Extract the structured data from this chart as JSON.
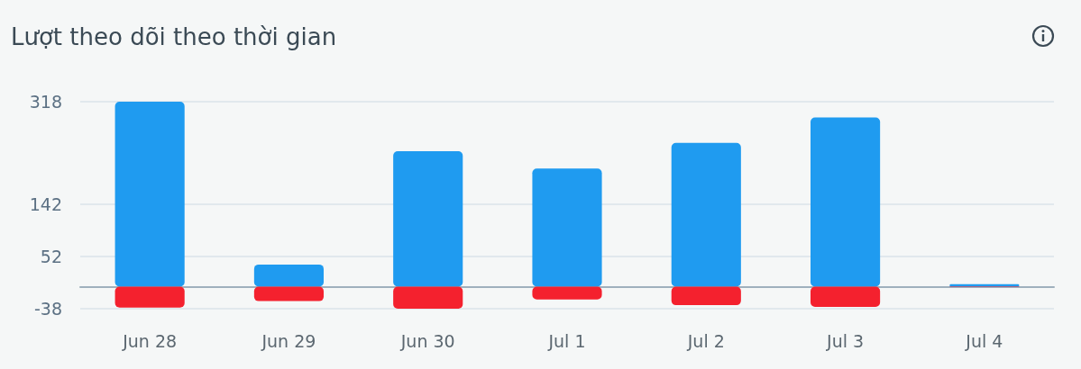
{
  "chart_data": {
    "type": "bar",
    "title": "Lượt theo dõi theo thời gian",
    "categories": [
      "Jun 28",
      "Jun 29",
      "Jun 30",
      "Jul 1",
      "Jul 2",
      "Jul 3",
      "Jul 4"
    ],
    "stacked": true,
    "series": [
      {
        "color": "#1f9bf0",
        "values": [
          318,
          38,
          233,
          203,
          247,
          291,
          4
        ]
      },
      {
        "color": "#f4212e",
        "values": [
          -36,
          -25,
          -38,
          -22,
          -32,
          -35,
          -1
        ]
      }
    ],
    "ylim": [
      -38,
      318
    ],
    "yticks": [
      -38,
      52,
      142,
      318
    ],
    "grid": "y"
  }
}
